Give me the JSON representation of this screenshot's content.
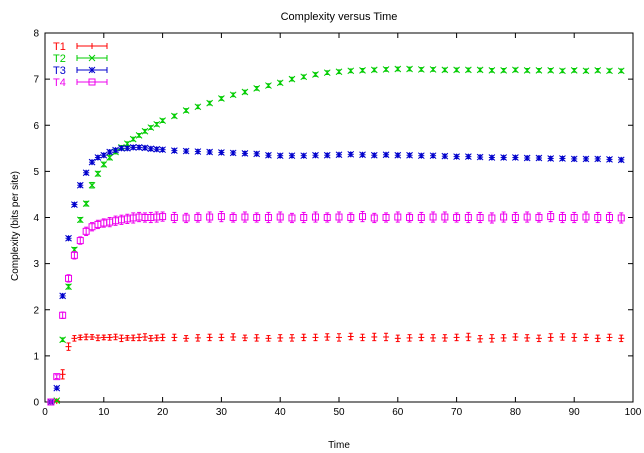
{
  "chart_data": {
    "type": "scatter",
    "title": "Complexity versus Time",
    "xlabel": "Time",
    "ylabel": "Complexity (bits per site)",
    "xlim": [
      0,
      100
    ],
    "ylim": [
      0,
      8
    ],
    "xticks": [
      0,
      10,
      20,
      30,
      40,
      50,
      60,
      70,
      80,
      90,
      100
    ],
    "yticks": [
      0,
      1,
      2,
      3,
      4,
      5,
      6,
      7,
      8
    ],
    "grid": false,
    "legend": "top-left",
    "error_bars": true,
    "x": [
      1,
      2,
      3,
      4,
      5,
      6,
      7,
      8,
      9,
      10,
      11,
      12,
      13,
      14,
      15,
      16,
      17,
      18,
      19,
      20,
      22,
      24,
      26,
      28,
      30,
      32,
      34,
      36,
      38,
      40,
      42,
      44,
      46,
      48,
      50,
      52,
      54,
      56,
      58,
      60,
      62,
      64,
      66,
      68,
      70,
      72,
      74,
      76,
      78,
      80,
      82,
      84,
      86,
      88,
      90,
      92,
      94,
      96,
      98
    ],
    "series": [
      {
        "name": "T1",
        "color": "#ff0000",
        "marker": "plus",
        "values": [
          0,
          0.02,
          0.6,
          1.2,
          1.38,
          1.4,
          1.41,
          1.41,
          1.39,
          1.4,
          1.4,
          1.41,
          1.38,
          1.39,
          1.39,
          1.4,
          1.41,
          1.38,
          1.39,
          1.4,
          1.4,
          1.38,
          1.39,
          1.4,
          1.4,
          1.41,
          1.39,
          1.39,
          1.38,
          1.39,
          1.39,
          1.4,
          1.4,
          1.41,
          1.4,
          1.42,
          1.4,
          1.41,
          1.41,
          1.38,
          1.39,
          1.4,
          1.39,
          1.39,
          1.4,
          1.41,
          1.37,
          1.38,
          1.39,
          1.41,
          1.39,
          1.38,
          1.4,
          1.41,
          1.4,
          1.4,
          1.38,
          1.4,
          1.38
        ],
        "errors": [
          0.02,
          0.02,
          0.1,
          0.08,
          0.06,
          0.05,
          0.06,
          0.05,
          0.06,
          0.05,
          0.06,
          0.06,
          0.07,
          0.05,
          0.06,
          0.07,
          0.07,
          0.06,
          0.06,
          0.07,
          0.07,
          0.06,
          0.07,
          0.07,
          0.07,
          0.07,
          0.06,
          0.07,
          0.06,
          0.07,
          0.07,
          0.07,
          0.07,
          0.07,
          0.08,
          0.07,
          0.07,
          0.08,
          0.08,
          0.07,
          0.07,
          0.07,
          0.07,
          0.07,
          0.07,
          0.08,
          0.07,
          0.08,
          0.07,
          0.07,
          0.07,
          0.07,
          0.08,
          0.07,
          0.08,
          0.07,
          0.07,
          0.07,
          0.07
        ]
      },
      {
        "name": "T2",
        "color": "#00cc00",
        "marker": "cross",
        "values": [
          0,
          0.03,
          1.35,
          2.5,
          3.3,
          3.95,
          4.3,
          4.7,
          4.95,
          5.15,
          5.3,
          5.42,
          5.52,
          5.6,
          5.7,
          5.78,
          5.87,
          5.95,
          6.02,
          6.1,
          6.2,
          6.32,
          6.4,
          6.48,
          6.58,
          6.66,
          6.72,
          6.8,
          6.86,
          6.92,
          7.0,
          7.05,
          7.1,
          7.14,
          7.16,
          7.18,
          7.19,
          7.2,
          7.21,
          7.22,
          7.22,
          7.21,
          7.21,
          7.2,
          7.2,
          7.2,
          7.2,
          7.19,
          7.19,
          7.2,
          7.19,
          7.19,
          7.19,
          7.18,
          7.19,
          7.18,
          7.19,
          7.18,
          7.18
        ],
        "errors": [
          0.01,
          0.02,
          0.04,
          0.05,
          0.05,
          0.05,
          0.05,
          0.06,
          0.05,
          0.05,
          0.05,
          0.04,
          0.04,
          0.04,
          0.04,
          0.04,
          0.04,
          0.04,
          0.04,
          0.04,
          0.04,
          0.04,
          0.04,
          0.04,
          0.04,
          0.04,
          0.04,
          0.04,
          0.04,
          0.04,
          0.04,
          0.04,
          0.04,
          0.04,
          0.04,
          0.04,
          0.04,
          0.04,
          0.04,
          0.04,
          0.04,
          0.04,
          0.04,
          0.04,
          0.04,
          0.04,
          0.04,
          0.04,
          0.04,
          0.04,
          0.04,
          0.04,
          0.04,
          0.04,
          0.04,
          0.04,
          0.04,
          0.04,
          0.04
        ]
      },
      {
        "name": "T3",
        "color": "#0000cc",
        "marker": "star",
        "values": [
          0,
          0.3,
          2.3,
          3.55,
          4.28,
          4.7,
          4.97,
          5.2,
          5.3,
          5.35,
          5.42,
          5.46,
          5.5,
          5.5,
          5.52,
          5.52,
          5.51,
          5.49,
          5.48,
          5.47,
          5.45,
          5.44,
          5.43,
          5.42,
          5.41,
          5.4,
          5.39,
          5.38,
          5.35,
          5.34,
          5.34,
          5.34,
          5.35,
          5.35,
          5.36,
          5.37,
          5.36,
          5.35,
          5.36,
          5.35,
          5.35,
          5.34,
          5.34,
          5.33,
          5.32,
          5.32,
          5.31,
          5.3,
          5.3,
          5.3,
          5.29,
          5.29,
          5.28,
          5.28,
          5.27,
          5.27,
          5.27,
          5.26,
          5.25
        ],
        "errors": [
          0.02,
          0.03,
          0.04,
          0.04,
          0.04,
          0.04,
          0.04,
          0.04,
          0.04,
          0.04,
          0.04,
          0.04,
          0.04,
          0.04,
          0.04,
          0.04,
          0.04,
          0.04,
          0.04,
          0.04,
          0.04,
          0.04,
          0.04,
          0.04,
          0.04,
          0.04,
          0.04,
          0.04,
          0.04,
          0.04,
          0.04,
          0.04,
          0.04,
          0.04,
          0.04,
          0.04,
          0.04,
          0.04,
          0.04,
          0.04,
          0.04,
          0.04,
          0.04,
          0.04,
          0.04,
          0.04,
          0.04,
          0.04,
          0.04,
          0.04,
          0.04,
          0.04,
          0.04,
          0.04,
          0.04,
          0.04,
          0.04,
          0.04,
          0.04
        ]
      },
      {
        "name": "T4",
        "color": "#ee00ee",
        "marker": "square",
        "values": [
          0,
          0.55,
          1.88,
          2.68,
          3.18,
          3.5,
          3.7,
          3.8,
          3.85,
          3.88,
          3.9,
          3.93,
          3.95,
          3.97,
          3.99,
          4.01,
          4.0,
          4.0,
          4.01,
          4.02,
          4.0,
          3.99,
          4.0,
          4.01,
          4.02,
          4.0,
          4.01,
          4.0,
          4.0,
          4.01,
          3.99,
          4.0,
          4.01,
          4.0,
          4.01,
          4.0,
          4.02,
          3.99,
          4.0,
          4.01,
          4.0,
          4.0,
          4.01,
          4.01,
          4.0,
          4.0,
          4.0,
          3.99,
          4.01,
          4.0,
          4.01,
          4.0,
          4.02,
          4.0,
          4.0,
          4.01,
          4.0,
          4.0,
          3.99
        ],
        "errors": [
          0.02,
          0.04,
          0.07,
          0.08,
          0.08,
          0.08,
          0.09,
          0.09,
          0.09,
          0.09,
          0.1,
          0.1,
          0.1,
          0.1,
          0.11,
          0.1,
          0.1,
          0.11,
          0.11,
          0.1,
          0.11,
          0.1,
          0.1,
          0.11,
          0.11,
          0.1,
          0.11,
          0.1,
          0.11,
          0.11,
          0.1,
          0.11,
          0.11,
          0.1,
          0.11,
          0.1,
          0.11,
          0.1,
          0.1,
          0.11,
          0.1,
          0.11,
          0.11,
          0.11,
          0.1,
          0.11,
          0.11,
          0.11,
          0.11,
          0.11,
          0.11,
          0.1,
          0.11,
          0.11,
          0.11,
          0.11,
          0.11,
          0.11,
          0.11
        ]
      }
    ]
  }
}
